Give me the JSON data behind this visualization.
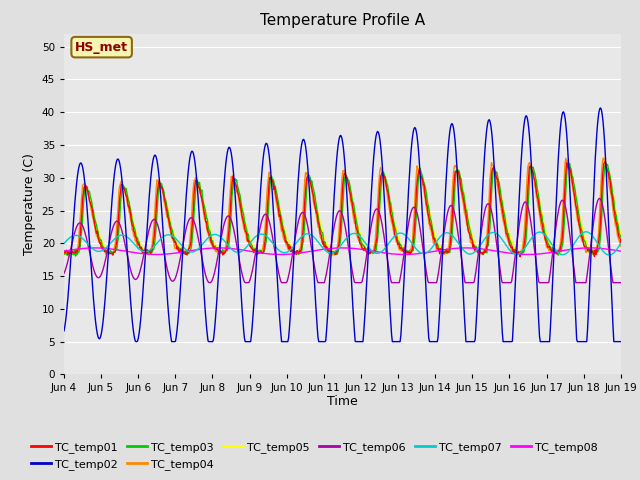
{
  "title": "Temperature Profile A",
  "xlabel": "Time",
  "ylabel": "Temperature (C)",
  "ylim": [
    0,
    52
  ],
  "yticks": [
    0,
    5,
    10,
    15,
    20,
    25,
    30,
    35,
    40,
    45,
    50
  ],
  "background_color": "#e0e0e0",
  "plot_bg_color": "#e8e8e8",
  "grid_color": "#ffffff",
  "annotation_text": "HS_met",
  "annotation_color": "#8b0000",
  "annotation_bg": "#f5f5b0",
  "annotation_border": "#8b6914",
  "series_colors": {
    "TC_temp01": "#ff0000",
    "TC_temp02": "#0000cc",
    "TC_temp03": "#00cc00",
    "TC_temp04": "#ff8800",
    "TC_temp05": "#ffff00",
    "TC_temp06": "#aa00aa",
    "TC_temp07": "#00cccc",
    "TC_temp08": "#ff00ff"
  },
  "xticklabels": [
    "Jun 4",
    "Jun 5",
    "Jun 6",
    "Jun 7",
    "Jun 8",
    "Jun 9",
    "Jun 10",
    "Jun 11",
    "Jun 12",
    "Jun 13",
    "Jun 14",
    "Jun 15",
    "Jun 16",
    "Jun 17",
    "Jun 18",
    "Jun 19"
  ],
  "num_days": 15
}
